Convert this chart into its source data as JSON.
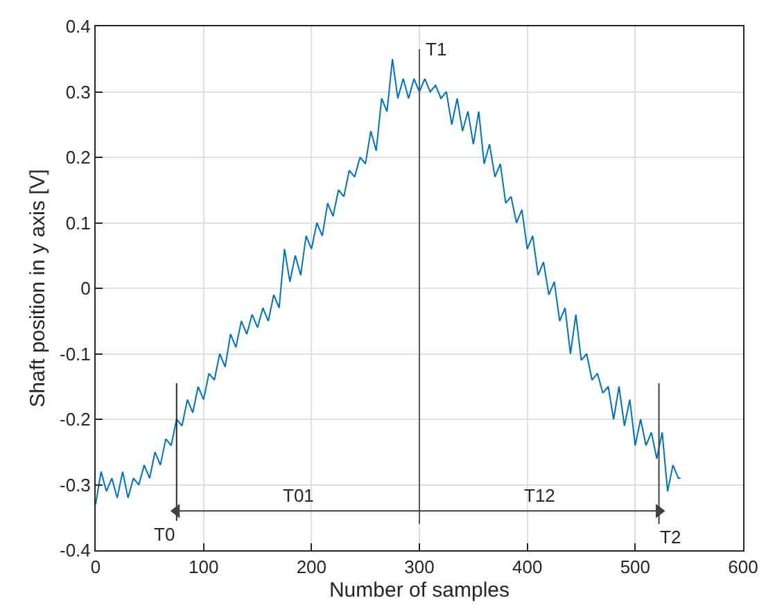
{
  "chart_data": {
    "type": "line",
    "xlabel": "Number of samples",
    "ylabel": "Shaft position in y axis [V]",
    "xlim": [
      0,
      600
    ],
    "xticks": [
      0,
      100,
      200,
      300,
      400,
      500,
      600
    ],
    "ylim": [
      -0.4,
      0.4
    ],
    "yticks": [
      -0.4,
      -0.3,
      -0.2,
      -0.1,
      0,
      0.1,
      0.2,
      0.3,
      0.4
    ],
    "grid": true,
    "marker": "none",
    "line_style": "solid",
    "series": [
      {
        "color": "#0072bd",
        "x": [
          0,
          5,
          10,
          15,
          20,
          25,
          30,
          35,
          40,
          45,
          50,
          55,
          60,
          65,
          70,
          75,
          80,
          85,
          90,
          95,
          100,
          105,
          110,
          115,
          120,
          125,
          130,
          135,
          140,
          145,
          150,
          155,
          160,
          165,
          170,
          175,
          180,
          185,
          190,
          195,
          200,
          205,
          210,
          215,
          220,
          225,
          230,
          235,
          240,
          245,
          250,
          255,
          260,
          265,
          270,
          275,
          280,
          285,
          290,
          295,
          300,
          305,
          310,
          315,
          320,
          325,
          330,
          335,
          340,
          345,
          350,
          355,
          360,
          365,
          370,
          375,
          380,
          385,
          390,
          395,
          400,
          405,
          410,
          415,
          420,
          425,
          430,
          435,
          440,
          445,
          450,
          455,
          460,
          465,
          470,
          475,
          480,
          485,
          490,
          495,
          500,
          505,
          510,
          515,
          520,
          525,
          530,
          535,
          540,
          542
        ],
        "values": [
          -0.33,
          -0.28,
          -0.31,
          -0.29,
          -0.32,
          -0.28,
          -0.32,
          -0.29,
          -0.3,
          -0.27,
          -0.29,
          -0.25,
          -0.27,
          -0.23,
          -0.24,
          -0.2,
          -0.21,
          -0.17,
          -0.19,
          -0.15,
          -0.17,
          -0.13,
          -0.14,
          -0.1,
          -0.12,
          -0.07,
          -0.09,
          -0.05,
          -0.07,
          -0.04,
          -0.06,
          -0.03,
          -0.05,
          -0.01,
          -0.03,
          0.06,
          0.01,
          0.05,
          0.02,
          0.08,
          0.06,
          0.1,
          0.08,
          0.13,
          0.11,
          0.15,
          0.14,
          0.18,
          0.17,
          0.2,
          0.19,
          0.24,
          0.21,
          0.29,
          0.27,
          0.35,
          0.29,
          0.32,
          0.29,
          0.32,
          0.3,
          0.32,
          0.3,
          0.31,
          0.29,
          0.3,
          0.25,
          0.29,
          0.24,
          0.27,
          0.22,
          0.27,
          0.19,
          0.22,
          0.17,
          0.19,
          0.13,
          0.14,
          0.1,
          0.12,
          0.06,
          0.08,
          0.02,
          0.04,
          -0.01,
          0.01,
          -0.05,
          -0.03,
          -0.1,
          -0.04,
          -0.11,
          -0.1,
          -0.14,
          -0.13,
          -0.16,
          -0.15,
          -0.2,
          -0.15,
          -0.21,
          -0.17,
          -0.24,
          -0.2,
          -0.24,
          -0.22,
          -0.26,
          -0.22,
          -0.31,
          -0.27,
          -0.29,
          -0.29
        ]
      },
      {
        "color": "#262626",
        "x": [
          75,
          75
        ],
        "values": [
          -0.145,
          -0.355
        ]
      },
      {
        "color": "#595959",
        "x": [
          300,
          300
        ],
        "values": [
          0.365,
          -0.36
        ]
      },
      {
        "color": "#404040",
        "x": [
          522,
          522
        ],
        "values": [
          -0.145,
          -0.36
        ]
      },
      {
        "color": "#404040",
        "x": [
          75,
          522
        ],
        "values": [
          -0.34,
          -0.34
        ],
        "marker": "triangle"
      }
    ],
    "annotations": [
      "T0",
      "T1",
      "T2",
      "T01",
      "T12"
    ]
  }
}
